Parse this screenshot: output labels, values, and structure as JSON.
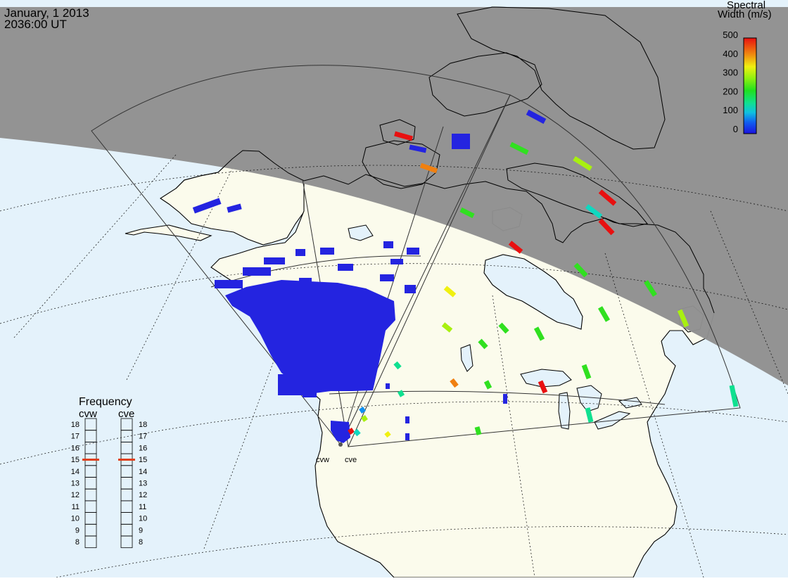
{
  "header": {
    "date": "January, 1 2013",
    "time": "2036:00 UT"
  },
  "colorbar": {
    "title_line1": "Spectral",
    "title_line2": "Width (m/s)",
    "ticks": [
      "500",
      "400",
      "300",
      "200",
      "100",
      "0"
    ]
  },
  "frequency_panel": {
    "title": "Frequency",
    "radars": [
      {
        "name": "cvw",
        "selected": 15
      },
      {
        "name": "cve",
        "selected": 15
      }
    ],
    "scale": [
      "18",
      "17",
      "16",
      "15",
      "14",
      "13",
      "12",
      "11",
      "10",
      "9",
      "8"
    ]
  },
  "sites": [
    {
      "name": "cvw"
    },
    {
      "name": "cve"
    }
  ],
  "colors": {
    "night": "#8f8f8f",
    "land": "#fbfbec",
    "ocean": "#e4f2fb",
    "blue_echo": "#2424e0",
    "freq_marker": "#e0401c"
  }
}
